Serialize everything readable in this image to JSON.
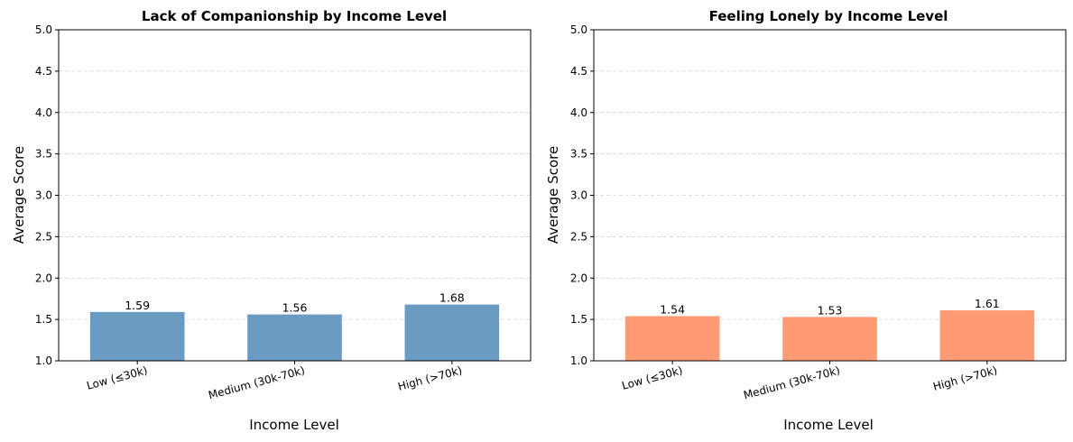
{
  "chart_data": [
    {
      "type": "bar",
      "title": "Lack of Companionship by Income Level",
      "xlabel": "Income Level",
      "ylabel": "Average Score",
      "categories": [
        "Low (≤30k)",
        "Medium (30k-70k)",
        "High (>70k)"
      ],
      "values": [
        1.59,
        1.56,
        1.68
      ],
      "value_labels": [
        "1.59",
        "1.56",
        "1.68"
      ],
      "ylim": [
        1.0,
        5.0
      ],
      "yticks": [
        "1.0",
        "1.5",
        "2.0",
        "2.5",
        "3.0",
        "3.5",
        "4.0",
        "4.5",
        "5.0"
      ],
      "bar_color": "#6a9bc3",
      "grid": "y-dashed"
    },
    {
      "type": "bar",
      "title": "Feeling Lonely by Income Level",
      "xlabel": "Income Level",
      "ylabel": "Average Score",
      "categories": [
        "Low (≤30k)",
        "Medium (30k-70k)",
        "High (>70k)"
      ],
      "values": [
        1.54,
        1.53,
        1.61
      ],
      "value_labels": [
        "1.54",
        "1.53",
        "1.61"
      ],
      "ylim": [
        1.0,
        5.0
      ],
      "yticks": [
        "1.0",
        "1.5",
        "2.0",
        "2.5",
        "3.0",
        "3.5",
        "4.0",
        "4.5",
        "5.0"
      ],
      "bar_color": "#ff9a73",
      "grid": "y-dashed"
    }
  ]
}
